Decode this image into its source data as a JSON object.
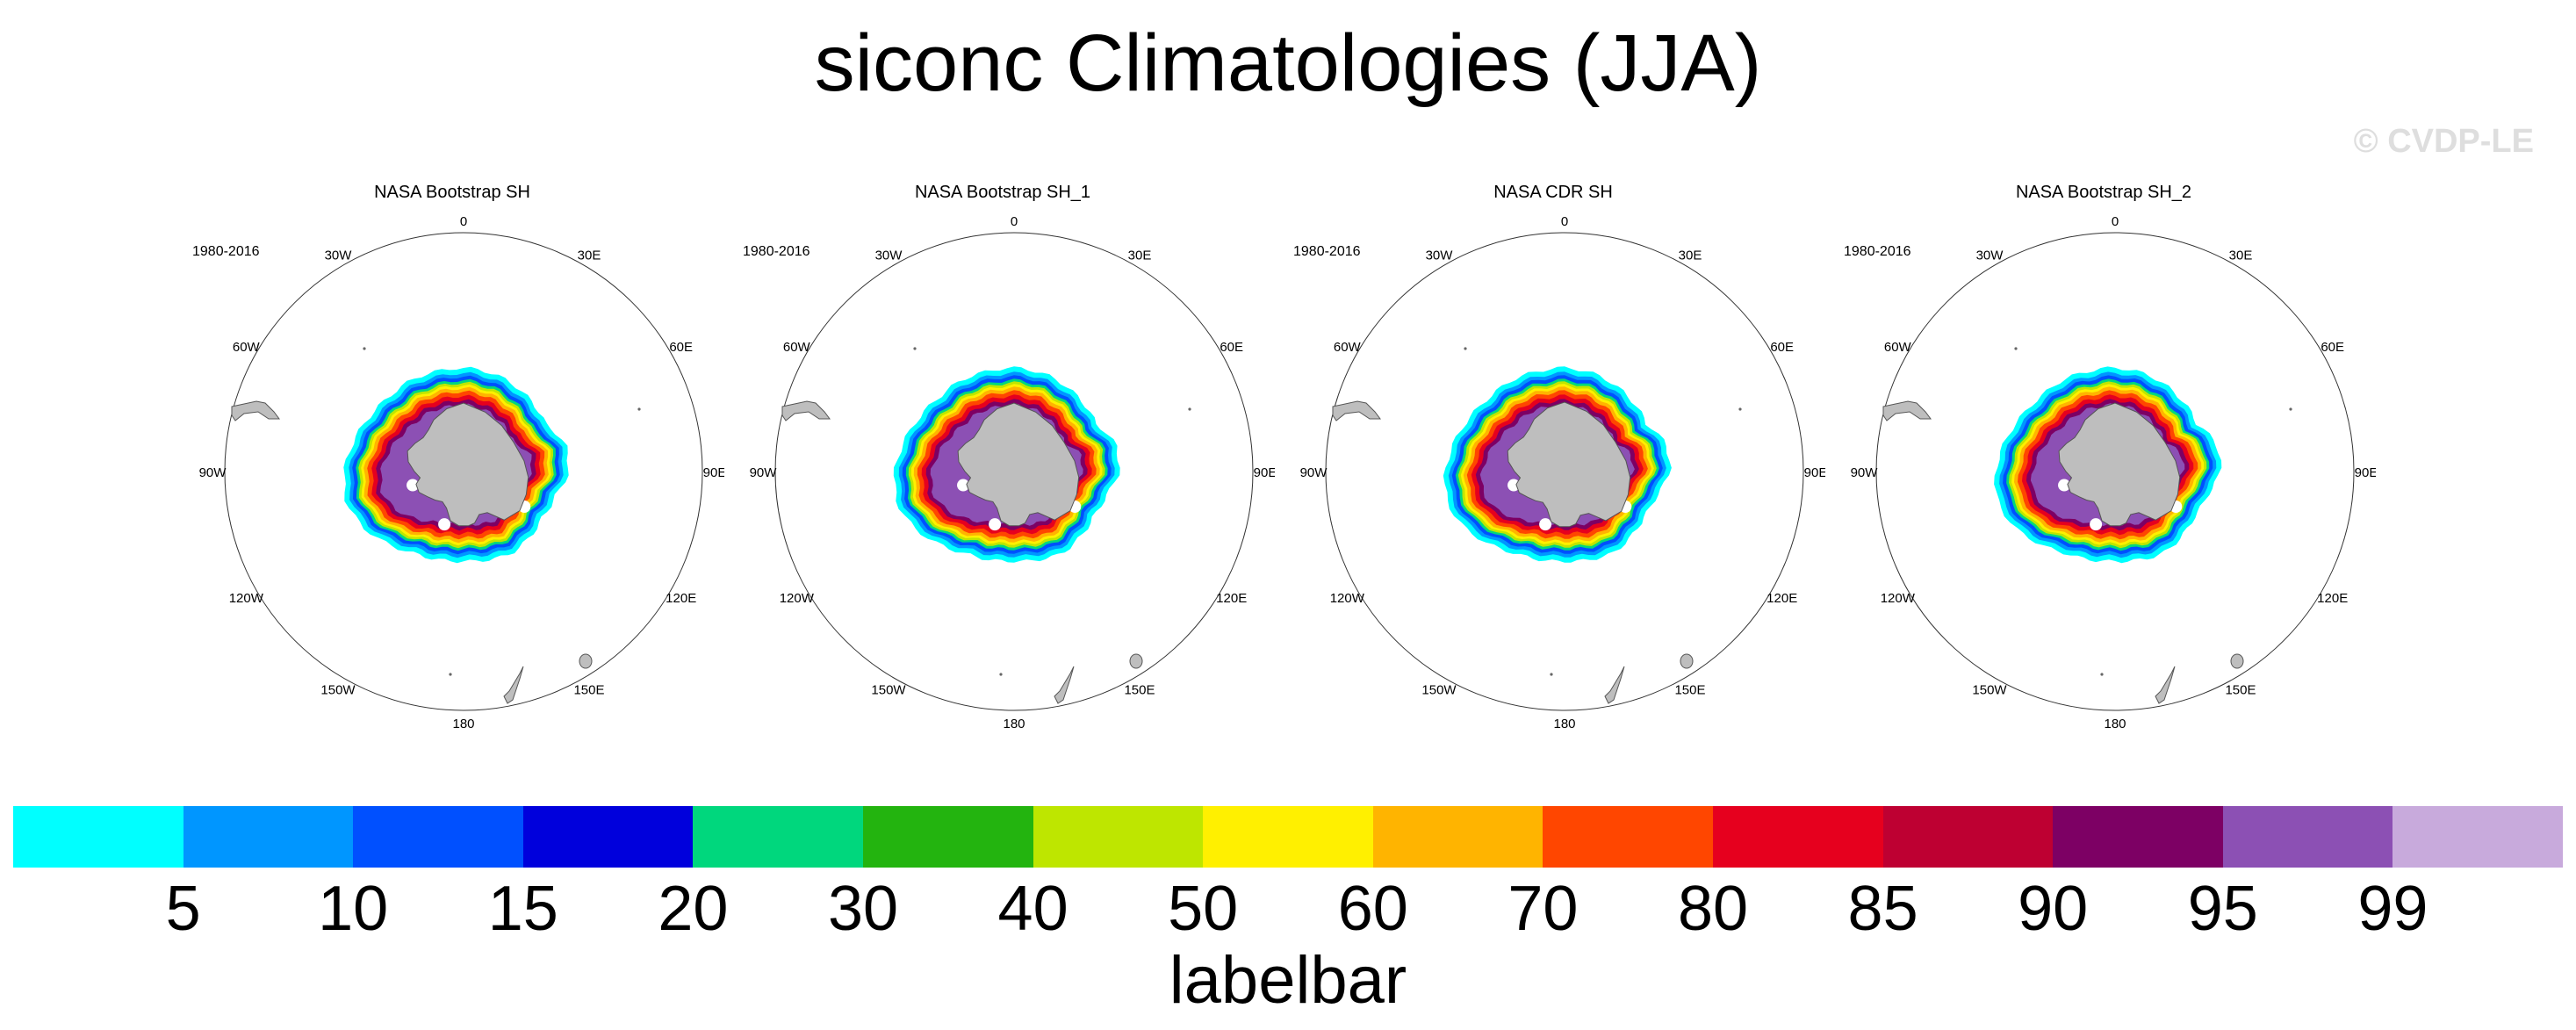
{
  "title": "siconc Climatologies (JJA)",
  "watermark": "© CVDP-LE",
  "panels": [
    {
      "title": "NASA Bootstrap SH",
      "period": "1980-2016",
      "variant": 0
    },
    {
      "title": "NASA Bootstrap SH_1",
      "period": "1980-2016",
      "variant": 1
    },
    {
      "title": "NASA CDR SH",
      "period": "1980-2016",
      "variant": 2
    },
    {
      "title": "NASA Bootstrap SH_2",
      "period": "1980-2016",
      "variant": 3
    }
  ],
  "lon_labels": [
    "0",
    "30E",
    "60E",
    "90E",
    "120E",
    "150E",
    "180",
    "150W",
    "120W",
    "90W",
    "60W",
    "30W"
  ],
  "map": {
    "projection": "south polar stereographic",
    "land_color": "#bebebe",
    "coastline_color": "#555555"
  },
  "labelbar": {
    "title": "labelbar",
    "colors": [
      "#00ffff",
      "#0096ff",
      "#0050ff",
      "#0000dc",
      "#00d77d",
      "#23b40f",
      "#bee600",
      "#fff000",
      "#ffb400",
      "#ff4600",
      "#e6001e",
      "#be0032",
      "#7d0064",
      "#8c50b4",
      "#c8aadc"
    ],
    "ticks": [
      "5",
      "10",
      "15",
      "20",
      "30",
      "40",
      "50",
      "60",
      "70",
      "80",
      "85",
      "90",
      "95",
      "99"
    ]
  }
}
